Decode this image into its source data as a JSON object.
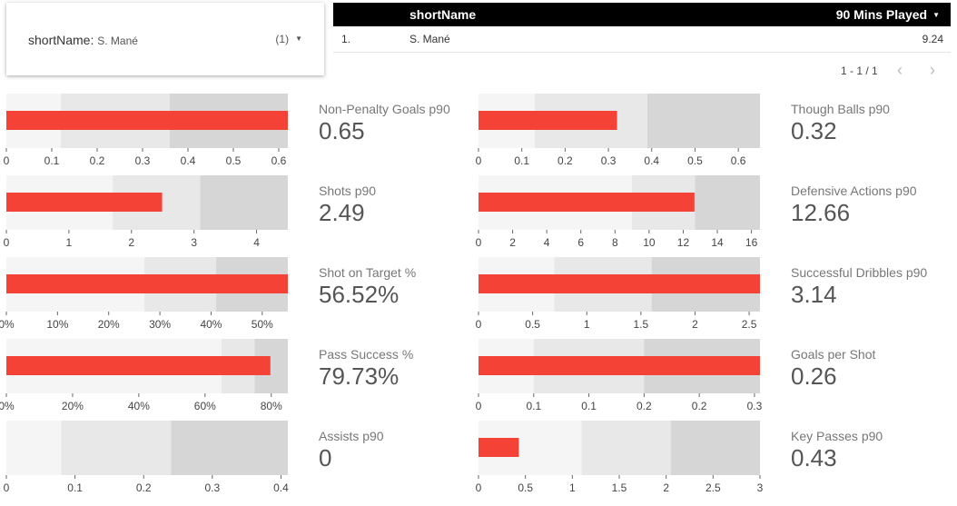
{
  "filter": {
    "label": "shortName",
    "selected": "S. Mané",
    "count": "(1)"
  },
  "table": {
    "col1": "shortName",
    "col2": "90 Mins Played",
    "rows": [
      {
        "index": "1.",
        "name": "S. Mané",
        "value": "9.24"
      }
    ]
  },
  "pager": {
    "text": "1 - 1 / 1"
  },
  "colors": {
    "bar": "#f44336",
    "range_dark": "#d6d6d6",
    "range_mid": "#e8e8e8",
    "range_light": "#f5f5f5"
  },
  "metrics": [
    {
      "title": "Non-Penalty Goals p90",
      "display": "0.65",
      "value": 0.65,
      "max": 0.62,
      "ranges": [
        0.12,
        0.36,
        0.62
      ],
      "ticks": [
        {
          "v": 0,
          "l": "0"
        },
        {
          "v": 0.1,
          "l": "0.1"
        },
        {
          "v": 0.2,
          "l": "0.2"
        },
        {
          "v": 0.3,
          "l": "0.3"
        },
        {
          "v": 0.4,
          "l": "0.4"
        },
        {
          "v": 0.5,
          "l": "0.5"
        },
        {
          "v": 0.6,
          "l": "0.6"
        }
      ]
    },
    {
      "title": "Though Balls p90",
      "display": "0.32",
      "value": 0.32,
      "max": 0.65,
      "ranges": [
        0.13,
        0.39,
        0.65
      ],
      "ticks": [
        {
          "v": 0,
          "l": "0"
        },
        {
          "v": 0.1,
          "l": "0.1"
        },
        {
          "v": 0.2,
          "l": "0.2"
        },
        {
          "v": 0.3,
          "l": "0.3"
        },
        {
          "v": 0.4,
          "l": "0.4"
        },
        {
          "v": 0.5,
          "l": "0.5"
        },
        {
          "v": 0.6,
          "l": "0.6"
        }
      ]
    },
    {
      "title": "Shots p90",
      "display": "2.49",
      "value": 2.49,
      "max": 4.5,
      "ranges": [
        1.7,
        3.1,
        4.5
      ],
      "ticks": [
        {
          "v": 0,
          "l": "0"
        },
        {
          "v": 1,
          "l": "1"
        },
        {
          "v": 2,
          "l": "2"
        },
        {
          "v": 3,
          "l": "3"
        },
        {
          "v": 4,
          "l": "4"
        }
      ]
    },
    {
      "title": "Defensive Actions p90",
      "display": "12.66",
      "value": 12.66,
      "max": 16.5,
      "ranges": [
        9,
        12.7,
        16.5
      ],
      "ticks": [
        {
          "v": 0,
          "l": "0"
        },
        {
          "v": 2,
          "l": "2"
        },
        {
          "v": 4,
          "l": "4"
        },
        {
          "v": 6,
          "l": "6"
        },
        {
          "v": 8,
          "l": "8"
        },
        {
          "v": 10,
          "l": "10"
        },
        {
          "v": 12,
          "l": "12"
        },
        {
          "v": 14,
          "l": "14"
        },
        {
          "v": 16,
          "l": "16"
        }
      ]
    },
    {
      "title": "Shot on Target %",
      "display": "56.52%",
      "value": 56.52,
      "max": 55,
      "ranges": [
        27,
        41,
        55
      ],
      "ticks": [
        {
          "v": 0,
          "l": "0%"
        },
        {
          "v": 10,
          "l": "10%"
        },
        {
          "v": 20,
          "l": "20%"
        },
        {
          "v": 30,
          "l": "30%"
        },
        {
          "v": 40,
          "l": "40%"
        },
        {
          "v": 50,
          "l": "50%"
        }
      ]
    },
    {
      "title": "Successful Dribbles p90",
      "display": "3.14",
      "value": 3.14,
      "max": 2.6,
      "ranges": [
        0.7,
        1.6,
        2.6
      ],
      "ticks": [
        {
          "v": 0,
          "l": "0"
        },
        {
          "v": 0.5,
          "l": "0.5"
        },
        {
          "v": 1,
          "l": "1"
        },
        {
          "v": 1.5,
          "l": "1.5"
        },
        {
          "v": 2,
          "l": "2"
        },
        {
          "v": 2.5,
          "l": "2.5"
        }
      ]
    },
    {
      "title": "Pass Success %",
      "display": "79.73%",
      "value": 79.73,
      "max": 85,
      "ranges": [
        65,
        75,
        85
      ],
      "ticks": [
        {
          "v": 0,
          "l": "0%"
        },
        {
          "v": 20,
          "l": "20%"
        },
        {
          "v": 40,
          "l": "40%"
        },
        {
          "v": 60,
          "l": "60%"
        },
        {
          "v": 80,
          "l": "80%"
        }
      ]
    },
    {
      "title": "Goals per Shot",
      "display": "0.26",
      "value": 0.26,
      "max": 0.255,
      "ranges": [
        0.05,
        0.15,
        0.255
      ],
      "ticks": [
        {
          "v": 0,
          "l": "0"
        },
        {
          "v": 0.05,
          "l": "0.1"
        },
        {
          "v": 0.1,
          "l": "0.1"
        },
        {
          "v": 0.15,
          "l": "0.2"
        },
        {
          "v": 0.2,
          "l": "0.2"
        },
        {
          "v": 0.25,
          "l": "0.3"
        }
      ]
    },
    {
      "title": "Assists p90",
      "display": "0",
      "value": 0,
      "max": 0.41,
      "ranges": [
        0.08,
        0.24,
        0.41
      ],
      "ticks": [
        {
          "v": 0,
          "l": "0"
        },
        {
          "v": 0.1,
          "l": "0.1"
        },
        {
          "v": 0.2,
          "l": "0.2"
        },
        {
          "v": 0.3,
          "l": "0.3"
        },
        {
          "v": 0.4,
          "l": "0.4"
        }
      ]
    },
    {
      "title": "Key Passes p90",
      "display": "0.43",
      "value": 0.43,
      "max": 3.0,
      "ranges": [
        1.1,
        2.05,
        3.0
      ],
      "ticks": [
        {
          "v": 0,
          "l": "0"
        },
        {
          "v": 0.5,
          "l": "0.5"
        },
        {
          "v": 1,
          "l": "1"
        },
        {
          "v": 1.5,
          "l": "1.5"
        },
        {
          "v": 2,
          "l": "2"
        },
        {
          "v": 2.5,
          "l": "2.5"
        },
        {
          "v": 3,
          "l": "3"
        }
      ]
    }
  ]
}
